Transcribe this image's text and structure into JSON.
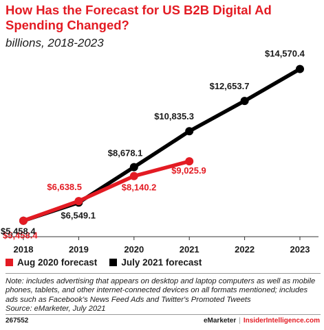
{
  "title": "How Has the Forecast for US B2B Digital Ad Spending Changed?",
  "subtitle": "billions, 2018-2023",
  "chart_data": {
    "type": "line",
    "x": [
      "2018",
      "2019",
      "2020",
      "2021",
      "2022",
      "2023"
    ],
    "series": [
      {
        "name": "Aug 2020 forecast",
        "color": "#e31b23",
        "values": [
          5458.4,
          6638.5,
          8140.2,
          9025.9,
          null,
          null
        ],
        "labels": [
          "$5,458.4",
          "$6,638.5",
          "$8,140.2",
          "$9,025.9",
          null,
          null
        ]
      },
      {
        "name": "July 2021 forecast",
        "color": "#000000",
        "values": [
          5458.4,
          6549.1,
          8678.1,
          10835.3,
          12653.7,
          14570.4
        ],
        "labels": [
          "$5,458.4",
          "$6,549.1",
          "$8,678.1",
          "$10,835.3",
          "$12,653.7",
          "$14,570.4"
        ]
      }
    ],
    "ylim": [
      4500,
      15500
    ],
    "grid": false,
    "legend_position": "bottom-left"
  },
  "legend": {
    "aug": "Aug 2020 forecast",
    "july": "July 2021 forecast"
  },
  "note": "Note: includes advertising that appears on desktop and laptop computers as well as mobile phones, tablets, and other internet-connected devices on all formats mentioned; includes ads such as Facebook's News Feed Ads and Twitter's Promoted Tweets",
  "source": "Source: eMarketer, July 2021",
  "footer": {
    "chart_id": "267552",
    "brand1": "eMarketer",
    "separator": "|",
    "brand2": "InsiderIntelligence.com"
  }
}
